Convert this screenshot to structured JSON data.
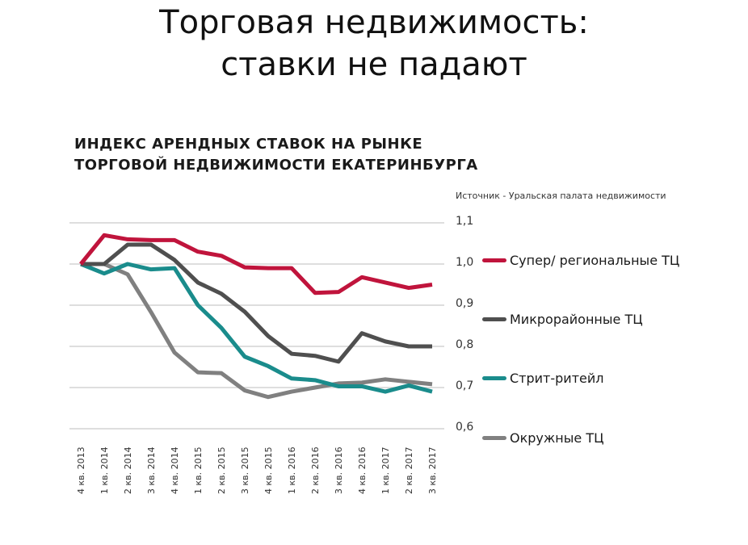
{
  "slide": {
    "title_line1": "Торговая недвижимость:",
    "title_line2": "ставки не падают"
  },
  "chart_data": {
    "type": "line",
    "title": "ИНДЕКС АРЕНДНЫХ СТАВОК НА РЫНКЕ ТОРГОВОЙ НЕДВИЖИМОСТИ ЕКАТЕРИНБУРГА",
    "title_line1": "ИНДЕКС АРЕНДНЫХ СТАВОК НА РЫНКЕ",
    "title_line2": "ТОРГОВОЙ НЕДВИЖИМОСТИ ЕКАТЕРИНБУРГА",
    "source": "Источник - Уральская палата недвижимости",
    "xlabel": "",
    "ylabel": "",
    "ylim": [
      0.6,
      1.1
    ],
    "yticks": [
      "1,1",
      "1,0",
      "0,9",
      "0,8",
      "0,7",
      "0,6"
    ],
    "ytick_values": [
      1.1,
      1.0,
      0.9,
      0.8,
      0.7,
      0.6
    ],
    "grid": true,
    "legend_position": "right",
    "categories": [
      "4 кв. 2013",
      "1 кв. 2014",
      "2 кв. 2014",
      "3 кв. 2014",
      "4 кв. 2014",
      "1 кв. 2015",
      "2 кв. 2015",
      "3 кв. 2015",
      "4 кв. 2015",
      "1 кв. 2016",
      "2 кв. 2016",
      "3 кв. 2016",
      "4 кв. 2016",
      "1 кв. 2017",
      "2 кв. 2017",
      "3 кв. 2017"
    ],
    "series": [
      {
        "name": "Супер/ региональные ТЦ",
        "color": "#C0143C",
        "values": [
          1.0,
          1.07,
          1.06,
          1.058,
          1.058,
          1.03,
          1.02,
          0.992,
          0.99,
          0.99,
          0.93,
          0.932,
          0.968,
          0.955,
          0.942,
          0.95
        ]
      },
      {
        "name": "Микрорайонные ТЦ",
        "color": "#4F4F4F",
        "values": [
          1.0,
          1.0,
          1.047,
          1.047,
          1.01,
          0.955,
          0.928,
          0.884,
          0.825,
          0.782,
          0.777,
          0.763,
          0.832,
          0.812,
          0.8,
          0.8
        ]
      },
      {
        "name": "Стрит-ритейл",
        "color": "#1A8C8C",
        "values": [
          1.0,
          0.977,
          1.0,
          0.987,
          0.99,
          0.9,
          0.845,
          0.775,
          0.752,
          0.722,
          0.718,
          0.703,
          0.703,
          0.69,
          0.705,
          0.69
        ]
      },
      {
        "name": "Окружные ТЦ",
        "color": "#808080",
        "values": [
          1.0,
          1.0,
          0.975,
          0.883,
          0.785,
          0.737,
          0.735,
          0.693,
          0.677,
          0.69,
          0.7,
          0.71,
          0.712,
          0.72,
          0.714,
          0.708
        ]
      }
    ]
  }
}
